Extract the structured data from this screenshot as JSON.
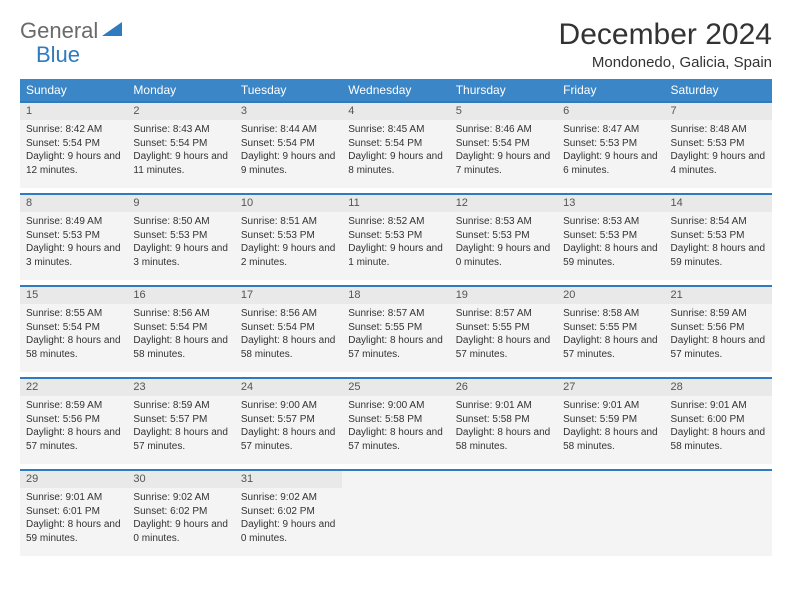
{
  "logo": {
    "word1": "General",
    "word2": "Blue"
  },
  "title": "December 2024",
  "location": "Mondonedo, Galicia, Spain",
  "colors": {
    "header_bg": "#3b86c6",
    "header_text": "#ffffff",
    "daynum_bg": "#e9e9e9",
    "detail_bg": "#f4f4f4",
    "accent": "#2f7bbf",
    "logo_gray": "#6a6a6a"
  },
  "weekdays": [
    "Sunday",
    "Monday",
    "Tuesday",
    "Wednesday",
    "Thursday",
    "Friday",
    "Saturday"
  ],
  "weeks": [
    [
      {
        "n": "1",
        "sr": "8:42 AM",
        "ss": "5:54 PM",
        "dl": "9 hours and 12 minutes."
      },
      {
        "n": "2",
        "sr": "8:43 AM",
        "ss": "5:54 PM",
        "dl": "9 hours and 11 minutes."
      },
      {
        "n": "3",
        "sr": "8:44 AM",
        "ss": "5:54 PM",
        "dl": "9 hours and 9 minutes."
      },
      {
        "n": "4",
        "sr": "8:45 AM",
        "ss": "5:54 PM",
        "dl": "9 hours and 8 minutes."
      },
      {
        "n": "5",
        "sr": "8:46 AM",
        "ss": "5:54 PM",
        "dl": "9 hours and 7 minutes."
      },
      {
        "n": "6",
        "sr": "8:47 AM",
        "ss": "5:53 PM",
        "dl": "9 hours and 6 minutes."
      },
      {
        "n": "7",
        "sr": "8:48 AM",
        "ss": "5:53 PM",
        "dl": "9 hours and 4 minutes."
      }
    ],
    [
      {
        "n": "8",
        "sr": "8:49 AM",
        "ss": "5:53 PM",
        "dl": "9 hours and 3 minutes."
      },
      {
        "n": "9",
        "sr": "8:50 AM",
        "ss": "5:53 PM",
        "dl": "9 hours and 3 minutes."
      },
      {
        "n": "10",
        "sr": "8:51 AM",
        "ss": "5:53 PM",
        "dl": "9 hours and 2 minutes."
      },
      {
        "n": "11",
        "sr": "8:52 AM",
        "ss": "5:53 PM",
        "dl": "9 hours and 1 minute."
      },
      {
        "n": "12",
        "sr": "8:53 AM",
        "ss": "5:53 PM",
        "dl": "9 hours and 0 minutes."
      },
      {
        "n": "13",
        "sr": "8:53 AM",
        "ss": "5:53 PM",
        "dl": "8 hours and 59 minutes."
      },
      {
        "n": "14",
        "sr": "8:54 AM",
        "ss": "5:53 PM",
        "dl": "8 hours and 59 minutes."
      }
    ],
    [
      {
        "n": "15",
        "sr": "8:55 AM",
        "ss": "5:54 PM",
        "dl": "8 hours and 58 minutes."
      },
      {
        "n": "16",
        "sr": "8:56 AM",
        "ss": "5:54 PM",
        "dl": "8 hours and 58 minutes."
      },
      {
        "n": "17",
        "sr": "8:56 AM",
        "ss": "5:54 PM",
        "dl": "8 hours and 58 minutes."
      },
      {
        "n": "18",
        "sr": "8:57 AM",
        "ss": "5:55 PM",
        "dl": "8 hours and 57 minutes."
      },
      {
        "n": "19",
        "sr": "8:57 AM",
        "ss": "5:55 PM",
        "dl": "8 hours and 57 minutes."
      },
      {
        "n": "20",
        "sr": "8:58 AM",
        "ss": "5:55 PM",
        "dl": "8 hours and 57 minutes."
      },
      {
        "n": "21",
        "sr": "8:59 AM",
        "ss": "5:56 PM",
        "dl": "8 hours and 57 minutes."
      }
    ],
    [
      {
        "n": "22",
        "sr": "8:59 AM",
        "ss": "5:56 PM",
        "dl": "8 hours and 57 minutes."
      },
      {
        "n": "23",
        "sr": "8:59 AM",
        "ss": "5:57 PM",
        "dl": "8 hours and 57 minutes."
      },
      {
        "n": "24",
        "sr": "9:00 AM",
        "ss": "5:57 PM",
        "dl": "8 hours and 57 minutes."
      },
      {
        "n": "25",
        "sr": "9:00 AM",
        "ss": "5:58 PM",
        "dl": "8 hours and 57 minutes."
      },
      {
        "n": "26",
        "sr": "9:01 AM",
        "ss": "5:58 PM",
        "dl": "8 hours and 58 minutes."
      },
      {
        "n": "27",
        "sr": "9:01 AM",
        "ss": "5:59 PM",
        "dl": "8 hours and 58 minutes."
      },
      {
        "n": "28",
        "sr": "9:01 AM",
        "ss": "6:00 PM",
        "dl": "8 hours and 58 minutes."
      }
    ],
    [
      {
        "n": "29",
        "sr": "9:01 AM",
        "ss": "6:01 PM",
        "dl": "8 hours and 59 minutes."
      },
      {
        "n": "30",
        "sr": "9:02 AM",
        "ss": "6:02 PM",
        "dl": "9 hours and 0 minutes."
      },
      {
        "n": "31",
        "sr": "9:02 AM",
        "ss": "6:02 PM",
        "dl": "9 hours and 0 minutes."
      },
      null,
      null,
      null,
      null
    ]
  ],
  "labels": {
    "sunrise": "Sunrise:",
    "sunset": "Sunset:",
    "daylight": "Daylight:"
  }
}
